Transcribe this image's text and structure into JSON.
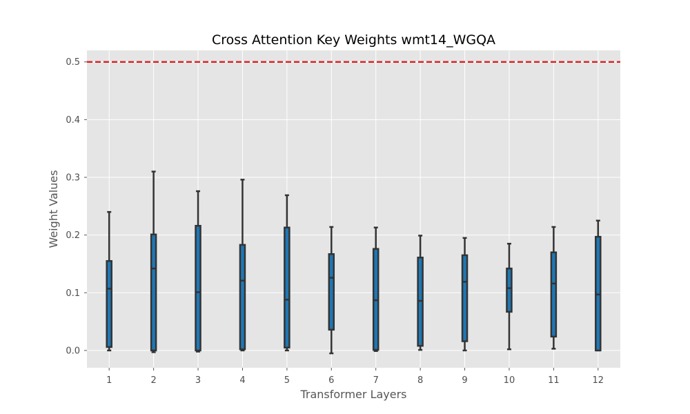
{
  "chart_data": {
    "type": "box",
    "title": "Cross Attention Key Weights wmt14_WGQA",
    "xlabel": "Transformer Layers",
    "ylabel": "Weight Values",
    "categories": [
      "1",
      "2",
      "3",
      "4",
      "5",
      "6",
      "7",
      "8",
      "9",
      "10",
      "11",
      "12"
    ],
    "ylim": [
      -0.03,
      0.52
    ],
    "yticks": [
      0.0,
      0.1,
      0.2,
      0.3,
      0.4,
      0.5
    ],
    "ytick_labels": [
      "0.0",
      "0.1",
      "0.2",
      "0.3",
      "0.4",
      "0.5"
    ],
    "grid": true,
    "reference_line": {
      "y": 0.5,
      "color": "#d62728",
      "style": "dashed"
    },
    "box_color": "#1f77b4",
    "edge_color": "#333333",
    "background": "#e5e5e5",
    "boxes": [
      {
        "min": 0.0,
        "q1": 0.006,
        "median": 0.107,
        "q3": 0.155,
        "max": 0.24
      },
      {
        "min": -0.003,
        "q1": 0.0,
        "median": 0.142,
        "q3": 0.201,
        "max": 0.31
      },
      {
        "min": -0.002,
        "q1": 0.0,
        "median": 0.101,
        "q3": 0.216,
        "max": 0.276
      },
      {
        "min": 0.0,
        "q1": 0.002,
        "median": 0.121,
        "q3": 0.183,
        "max": 0.296
      },
      {
        "min": 0.0,
        "q1": 0.005,
        "median": 0.088,
        "q3": 0.213,
        "max": 0.269
      },
      {
        "min": -0.005,
        "q1": 0.036,
        "median": 0.126,
        "q3": 0.167,
        "max": 0.214
      },
      {
        "min": -0.001,
        "q1": 0.001,
        "median": 0.087,
        "q3": 0.176,
        "max": 0.213
      },
      {
        "min": 0.001,
        "q1": 0.008,
        "median": 0.086,
        "q3": 0.161,
        "max": 0.199
      },
      {
        "min": 0.0,
        "q1": 0.016,
        "median": 0.119,
        "q3": 0.165,
        "max": 0.195
      },
      {
        "min": 0.002,
        "q1": 0.067,
        "median": 0.108,
        "q3": 0.142,
        "max": 0.185
      },
      {
        "min": 0.003,
        "q1": 0.024,
        "median": 0.116,
        "q3": 0.17,
        "max": 0.214
      },
      {
        "min": 0.0,
        "q1": 0.0,
        "median": 0.097,
        "q3": 0.197,
        "max": 0.225
      }
    ]
  }
}
